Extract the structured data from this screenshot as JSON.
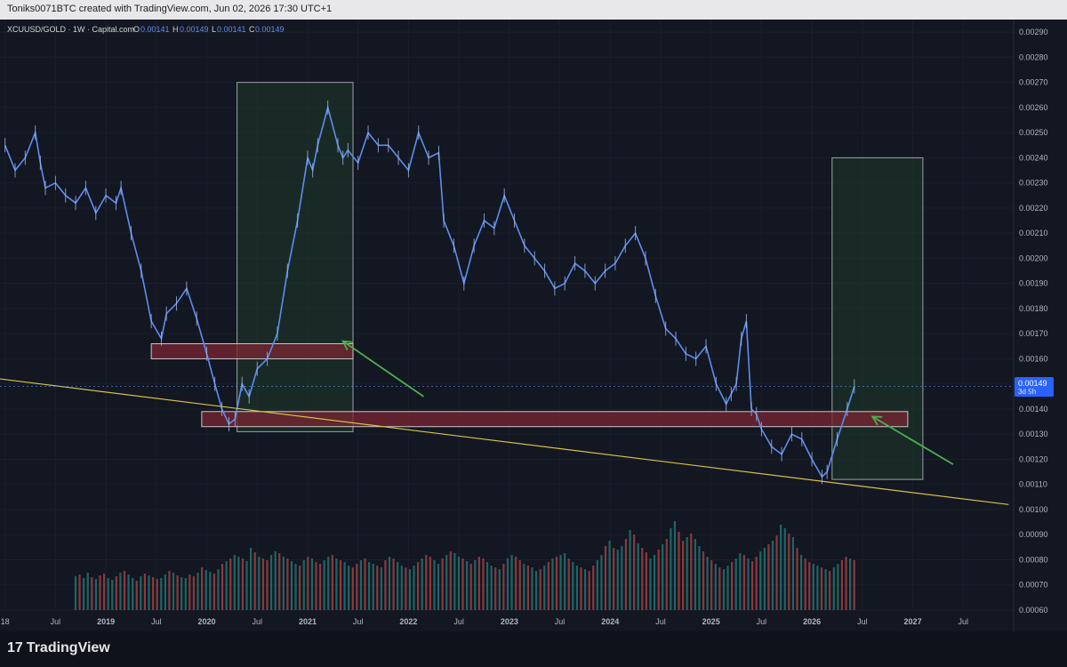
{
  "header": {
    "attribution": "Toniks0071BTC created with TradingView.com, Jun 02, 2026 17:30 UTC+1"
  },
  "symbol_line": {
    "symbol": "XCUUSD/GOLD · 1W · Capital.com",
    "o_label": "O",
    "o_value": "0.00141",
    "h_label": "H",
    "h_value": "0.00149",
    "l_label": "L",
    "l_value": "0.00141",
    "c_label": "C",
    "c_value": "0.00149"
  },
  "price_tag": {
    "value": "0.00149",
    "countdown": "3d 5h"
  },
  "footer": {
    "brand": "TradingView",
    "logo_glyph": "17"
  },
  "colors": {
    "background": "#131722",
    "candle": "#5b8ff0",
    "volume_up": "#26a69a",
    "volume_down": "#ef5350",
    "zone_red": "#7a2632",
    "zone_green": "#1f3a2a",
    "trendline": "#d4c24a",
    "arrow": "#4caf50",
    "axis_text": "#b2b5be"
  },
  "chart_data": {
    "type": "line",
    "title": "",
    "xlabel": "",
    "ylabel": "",
    "ylim": [
      0.0006,
      0.00295
    ],
    "price_scale_ticks": [
      "0.00290",
      "0.00280",
      "0.00270",
      "0.00260",
      "0.00250",
      "0.00240",
      "0.00230",
      "0.00220",
      "0.00210",
      "0.00200",
      "0.00190",
      "0.00180",
      "0.00170",
      "0.00160",
      "0.00150",
      "0.00140",
      "0.00130",
      "0.00120",
      "0.00110",
      "0.00100",
      "0.00090",
      "0.00080",
      "0.00070",
      "0.00060"
    ],
    "time_ticks": [
      {
        "label": "18",
        "t": 2018.0
      },
      {
        "label": "Jul",
        "t": 2018.5
      },
      {
        "label": "2019",
        "t": 2019.0
      },
      {
        "label": "Jul",
        "t": 2019.5
      },
      {
        "label": "2020",
        "t": 2020.0
      },
      {
        "label": "Jul",
        "t": 2020.5
      },
      {
        "label": "2021",
        "t": 2021.0
      },
      {
        "label": "Jul",
        "t": 2021.5
      },
      {
        "label": "2022",
        "t": 2022.0
      },
      {
        "label": "Jul",
        "t": 2022.5
      },
      {
        "label": "2023",
        "t": 2023.0
      },
      {
        "label": "Jul",
        "t": 2023.5
      },
      {
        "label": "2024",
        "t": 2024.0
      },
      {
        "label": "Jul",
        "t": 2024.5
      },
      {
        "label": "2025",
        "t": 2025.0
      },
      {
        "label": "Jul",
        "t": 2025.5
      },
      {
        "label": "2026",
        "t": 2026.0
      },
      {
        "label": "Jul",
        "t": 2026.5
      },
      {
        "label": "2027",
        "t": 2027.0
      },
      {
        "label": "Jul",
        "t": 2027.5
      }
    ],
    "series": [
      {
        "x": [
          2018.0,
          2018.1,
          2018.2,
          2018.3,
          2018.35,
          2018.4,
          2018.5,
          2018.6,
          2018.7,
          2018.8,
          2018.9,
          2019.0,
          2019.1,
          2019.15,
          2019.25,
          2019.35,
          2019.45,
          2019.55,
          2019.6,
          2019.7,
          2019.8,
          2019.9,
          2020.0,
          2020.08,
          2020.15,
          2020.22,
          2020.28,
          2020.35,
          2020.42,
          2020.5,
          2020.6,
          2020.7,
          2020.8,
          2020.9,
          2021.0,
          2021.05,
          2021.1,
          2021.2,
          2021.3,
          2021.35,
          2021.4,
          2021.5,
          2021.6,
          2021.7,
          2021.8,
          2021.9,
          2022.0,
          2022.1,
          2022.2,
          2022.3,
          2022.35,
          2022.45,
          2022.55,
          2022.65,
          2022.75,
          2022.85,
          2022.95,
          2023.05,
          2023.15,
          2023.25,
          2023.35,
          2023.45,
          2023.55,
          2023.65,
          2023.75,
          2023.85,
          2023.95,
          2024.05,
          2024.15,
          2024.25,
          2024.35,
          2024.45,
          2024.55,
          2024.65,
          2024.75,
          2024.85,
          2024.95,
          2025.05,
          2025.15,
          2025.2,
          2025.25,
          2025.3,
          2025.35,
          2025.4,
          2025.45,
          2025.5,
          2025.6,
          2025.7,
          2025.8,
          2025.9,
          2026.0,
          2026.1,
          2026.15,
          2026.25,
          2026.35,
          2026.42
        ],
        "values": [
          0.00245,
          0.00235,
          0.0024,
          0.0025,
          0.00238,
          0.00228,
          0.0023,
          0.00225,
          0.00222,
          0.00228,
          0.00218,
          0.00225,
          0.00222,
          0.00228,
          0.0021,
          0.00195,
          0.00175,
          0.00168,
          0.00178,
          0.00182,
          0.00188,
          0.00176,
          0.00162,
          0.0015,
          0.0014,
          0.00134,
          0.00136,
          0.0015,
          0.00145,
          0.00156,
          0.0016,
          0.0017,
          0.00195,
          0.00215,
          0.0024,
          0.00235,
          0.00245,
          0.0026,
          0.00245,
          0.0024,
          0.00243,
          0.00238,
          0.0025,
          0.00245,
          0.00245,
          0.0024,
          0.00235,
          0.0025,
          0.0024,
          0.00242,
          0.00215,
          0.00205,
          0.0019,
          0.00205,
          0.00215,
          0.00212,
          0.00225,
          0.00215,
          0.00205,
          0.002,
          0.00195,
          0.00188,
          0.0019,
          0.00198,
          0.00195,
          0.0019,
          0.00195,
          0.00198,
          0.00205,
          0.0021,
          0.002,
          0.00185,
          0.00172,
          0.00168,
          0.00162,
          0.0016,
          0.00165,
          0.0015,
          0.00142,
          0.00146,
          0.0015,
          0.00168,
          0.00175,
          0.0014,
          0.00138,
          0.00132,
          0.00125,
          0.00122,
          0.0013,
          0.00128,
          0.0012,
          0.00113,
          0.00115,
          0.00128,
          0.0014,
          0.00149
        ]
      }
    ],
    "zones": [
      {
        "kind": "resistance",
        "t_start": 2019.45,
        "t_end": 2021.45,
        "price_low": 0.0016,
        "price_high": 0.00166
      },
      {
        "kind": "support",
        "t_start": 2019.95,
        "t_end": 2026.95,
        "price_low": 0.00133,
        "price_high": 0.00139
      }
    ],
    "boxes": [
      {
        "t_start": 2020.3,
        "t_end": 2021.45,
        "price_low": 0.00131,
        "price_high": 0.0027
      },
      {
        "t_start": 2026.2,
        "t_end": 2027.1,
        "price_low": 0.00112,
        "price_high": 0.0024
      }
    ],
    "trendline": {
      "t_start": 2017.95,
      "price_start": 0.00152,
      "t_end": 2027.95,
      "price_end": 0.00102
    },
    "arrows": [
      {
        "t_from": 2022.15,
        "p_from": 0.00145,
        "t_to": 2021.35,
        "p_to": 0.00167
      },
      {
        "t_from": 2027.4,
        "p_from": 0.00118,
        "t_to": 2026.6,
        "p_to": 0.00137
      }
    ],
    "volume_scale": {
      "max": 100
    },
    "volume": {
      "t_start": 2018.7,
      "t_end": 2026.42,
      "values": [
        38,
        40,
        36,
        42,
        37,
        35,
        39,
        41,
        36,
        34,
        38,
        42,
        44,
        40,
        36,
        33,
        38,
        41,
        39,
        37,
        35,
        36,
        40,
        44,
        42,
        39,
        37,
        36,
        40,
        38,
        42,
        48,
        45,
        43,
        41,
        46,
        52,
        55,
        58,
        62,
        60,
        58,
        55,
        70,
        65,
        60,
        58,
        56,
        62,
        66,
        64,
        60,
        58,
        55,
        52,
        50,
        56,
        60,
        58,
        54,
        52,
        56,
        60,
        62,
        58,
        56,
        54,
        50,
        48,
        52,
        56,
        58,
        54,
        52,
        50,
        48,
        56,
        60,
        58,
        54,
        50,
        48,
        46,
        50,
        54,
        58,
        62,
        60,
        56,
        52,
        58,
        62,
        66,
        64,
        60,
        58,
        55,
        52,
        56,
        60,
        58,
        54,
        50,
        48,
        46,
        52,
        58,
        62,
        60,
        56,
        52,
        50,
        48,
        44,
        46,
        50,
        54,
        58,
        60,
        62,
        64,
        58,
        54,
        50,
        48,
        46,
        44,
        50,
        56,
        62,
        72,
        78,
        70,
        68,
        72,
        80,
        90,
        85,
        75,
        70,
        65,
        58,
        62,
        68,
        74,
        80,
        92,
        100,
        88,
        78,
        82,
        86,
        80,
        72,
        66,
        60,
        56,
        52,
        48,
        46,
        50,
        54,
        58,
        64,
        62,
        58,
        55,
        60,
        66,
        70,
        74,
        78,
        84,
        96,
        92,
        86,
        82,
        70,
        62,
        58,
        54,
        52,
        50,
        48,
        46,
        44,
        48,
        52,
        56,
        60,
        58,
        56
      ],
      "up_pattern": [
        1,
        0,
        1,
        1,
        0,
        1,
        0,
        0,
        1,
        1,
        0,
        1,
        0,
        1,
        1,
        0,
        1,
        0,
        1,
        0,
        0,
        1,
        1,
        0,
        1,
        0,
        1,
        1,
        0,
        0,
        1,
        0,
        1,
        1,
        0,
        1,
        0,
        1,
        0,
        1
      ]
    }
  }
}
